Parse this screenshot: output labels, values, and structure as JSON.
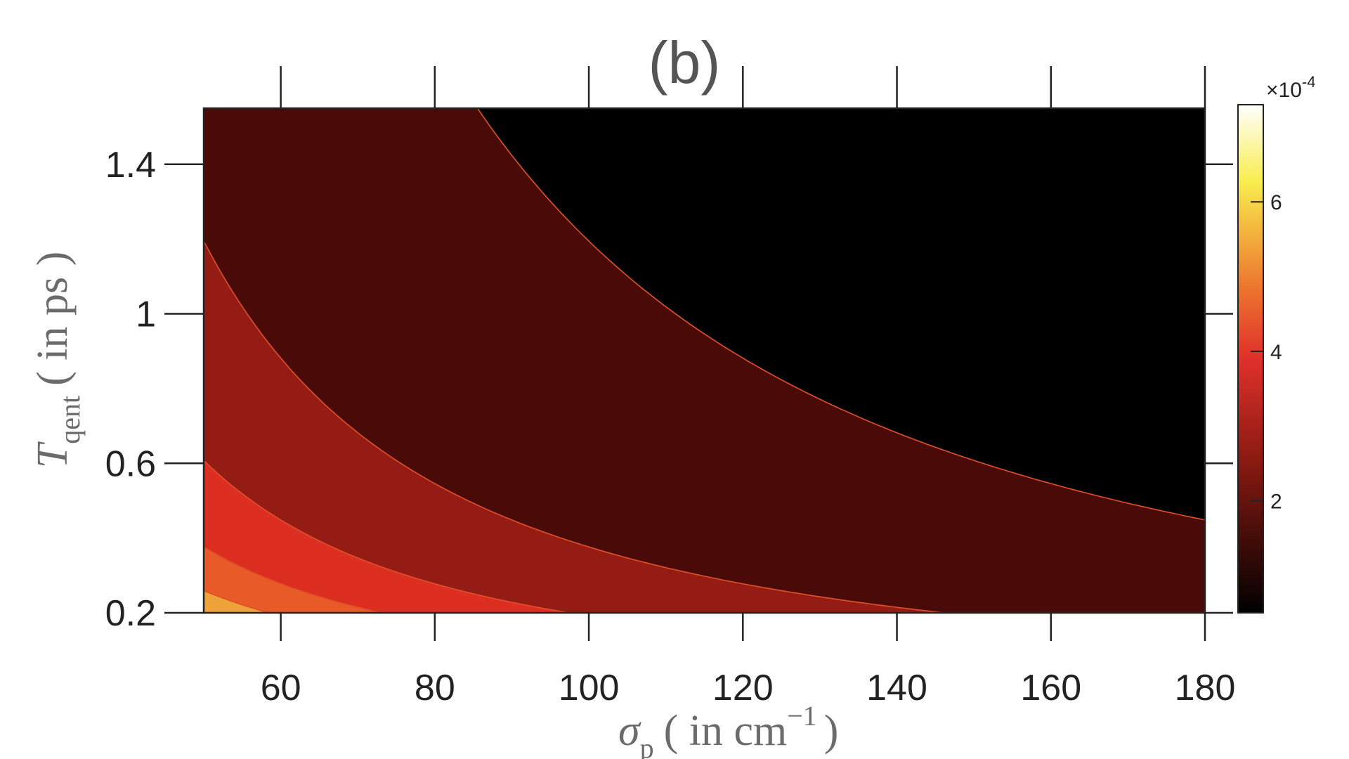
{
  "chart_data": {
    "type": "contour",
    "title": "(b)",
    "xlabel": {
      "symbol": "σ",
      "subscript": "p",
      "unit": "( in cm",
      "superscript": "−1",
      "close": ")"
    },
    "ylabel": {
      "symbol": "T",
      "subscript": "qent",
      "unit": "( in ps )"
    },
    "xlim": [
      50,
      180
    ],
    "ylim": [
      0.2,
      1.55
    ],
    "x_ticks": [
      "60",
      "80",
      "100",
      "120",
      "140",
      "160",
      "180"
    ],
    "y_ticks": [
      "0.2",
      "0.6",
      "1",
      "1.4"
    ],
    "colorbar": {
      "exponent_label": "×10",
      "exponent_power": "-4",
      "range": [
        0.5,
        7.3
      ],
      "ticks": [
        "2",
        "4",
        "6"
      ]
    },
    "contour_levels": [
      8e-05,
      0.00016,
      0.00024,
      0.00032,
      0.0004,
      0.00048,
      0.00056,
      0.00064
    ],
    "contour_line_color": "#e0502a",
    "fill_colors": [
      "#000000",
      "#4a0a07",
      "#941c15",
      "#dd2e22",
      "#e85a28",
      "#eda23a",
      "#f7e64a",
      "#fbfa8c",
      "#fbf9ea"
    ],
    "colormap": "hot"
  }
}
